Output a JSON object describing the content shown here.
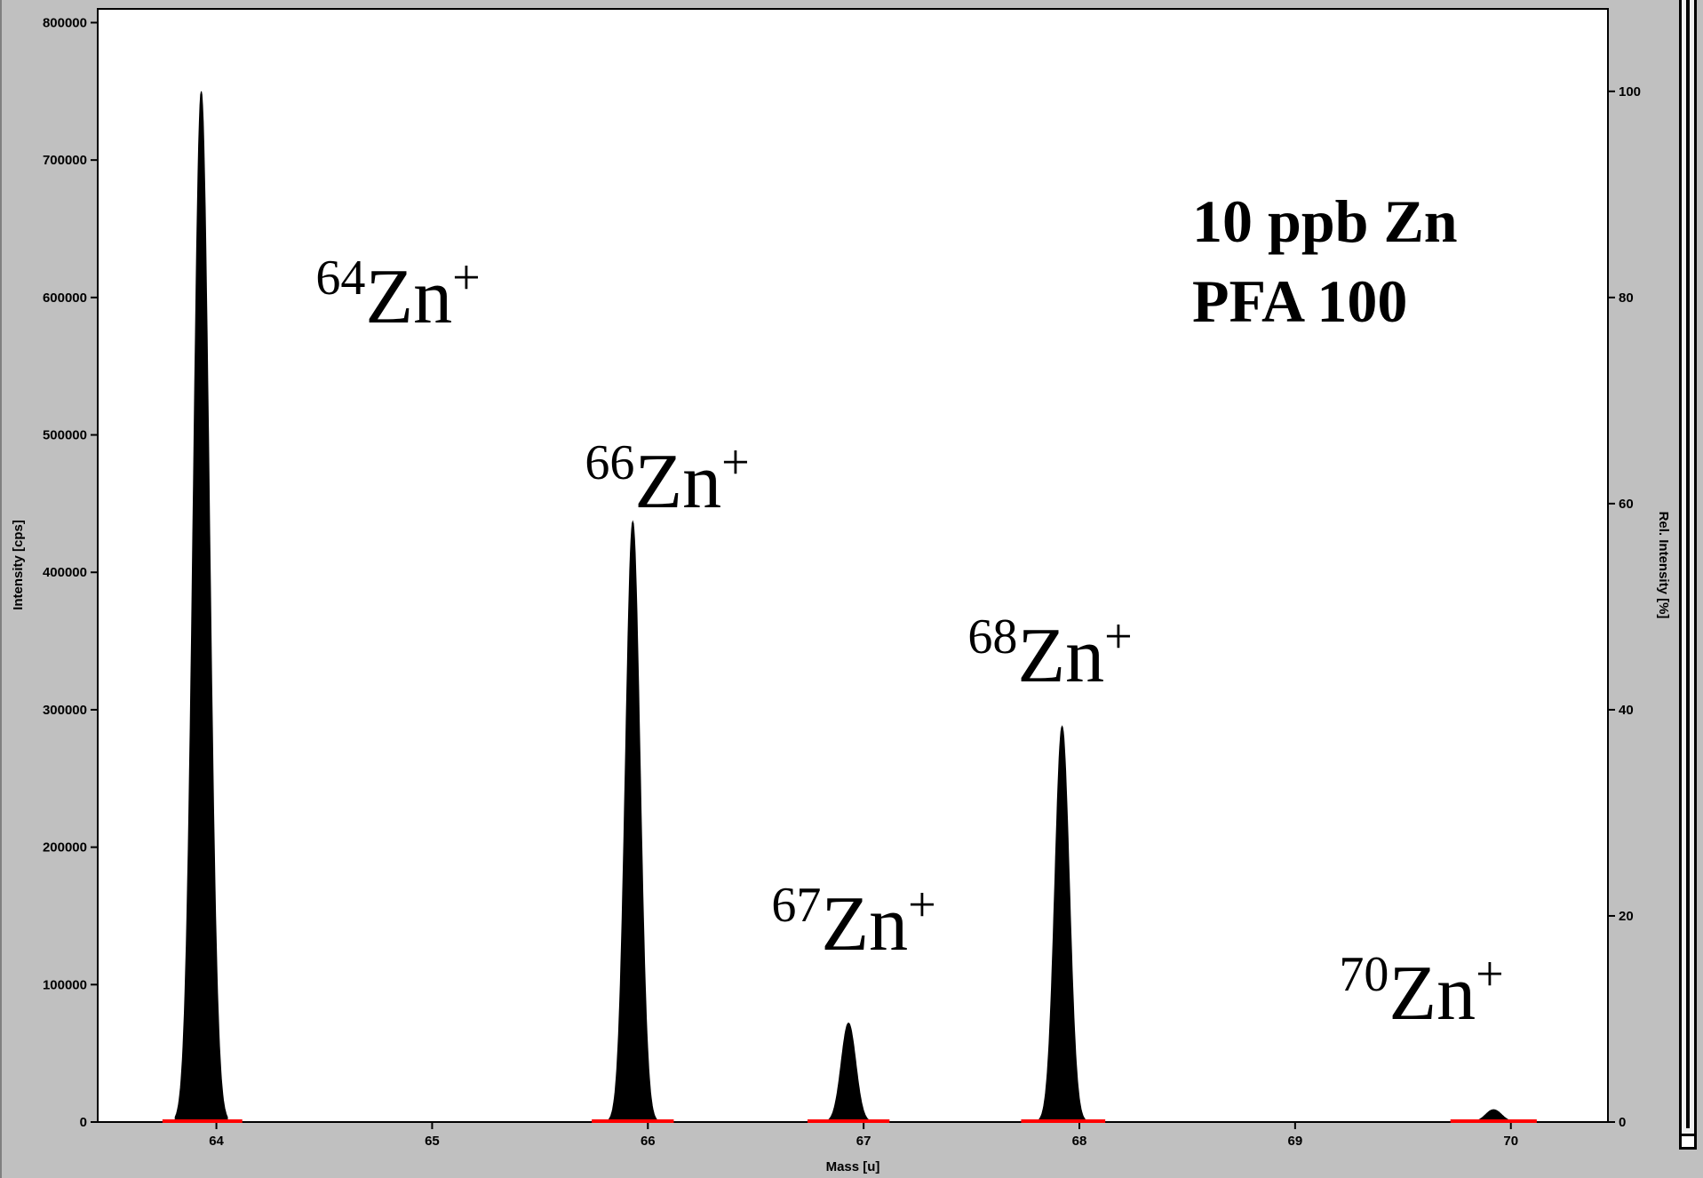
{
  "chart_data": {
    "type": "area",
    "title": "",
    "xlabel": "Mass [u]",
    "ylabel": "Intensity [cps]",
    "y2label": "Rel. Intensity [%]",
    "xlim": [
      63.45,
      70.45
    ],
    "ylim": [
      0,
      810000
    ],
    "y2lim": [
      0,
      108
    ],
    "x_ticks": [
      "64",
      "65",
      "66",
      "67",
      "68",
      "69",
      "70"
    ],
    "y_ticks": [
      "0",
      "100000",
      "200000",
      "300000",
      "400000",
      "500000",
      "600000",
      "700000",
      "800000"
    ],
    "y2_ticks": [
      "0",
      "20",
      "40",
      "60",
      "80",
      "100"
    ],
    "series": [
      {
        "color": "#000000",
        "peaks": [
          {
            "mass": 63.93,
            "intensity": 750000,
            "width": 0.11
          },
          {
            "mass": 65.93,
            "intensity": 437000,
            "width": 0.1
          },
          {
            "mass": 66.93,
            "intensity": 72000,
            "width": 0.1
          },
          {
            "mass": 67.92,
            "intensity": 288000,
            "width": 0.1
          },
          {
            "mass": 69.92,
            "intensity": 9000,
            "width": 0.11
          }
        ]
      }
    ],
    "integration_windows": {
      "color": "#ff0000",
      "ranges": [
        [
          63.75,
          64.12
        ],
        [
          65.74,
          66.12
        ],
        [
          66.74,
          67.12
        ],
        [
          67.73,
          68.12
        ],
        [
          69.72,
          70.12
        ]
      ]
    },
    "peak_labels": [
      {
        "mass": "64",
        "element": "Zn",
        "charge": "+"
      },
      {
        "mass": "66",
        "element": "Zn",
        "charge": "+"
      },
      {
        "mass": "67",
        "element": "Zn",
        "charge": "+"
      },
      {
        "mass": "68",
        "element": "Zn",
        "charge": "+"
      },
      {
        "mass": "70",
        "element": "Zn",
        "charge": "+"
      }
    ],
    "annotation": [
      "10 ppb Zn",
      "PFA 100"
    ]
  }
}
